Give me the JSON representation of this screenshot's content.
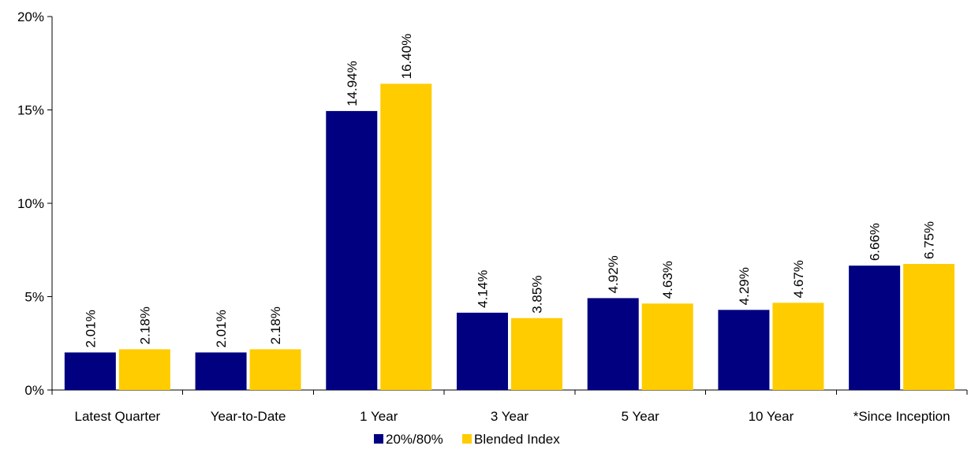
{
  "chart_data": {
    "type": "bar",
    "categories": [
      "Latest Quarter",
      "Year-to-Date",
      "1 Year",
      "3 Year",
      "5 Year",
      "10 Year",
      "*Since Inception"
    ],
    "series": [
      {
        "name": "20%/80%",
        "color": "#000080",
        "values": [
          2.01,
          2.01,
          14.94,
          4.14,
          4.92,
          4.29,
          6.66
        ],
        "labels": [
          "2.01%",
          "2.01%",
          "14.94%",
          "4.14%",
          "4.92%",
          "4.29%",
          "6.66%"
        ]
      },
      {
        "name": "Blended Index",
        "color": "#FFCC00",
        "values": [
          2.18,
          2.18,
          16.4,
          3.85,
          4.63,
          4.67,
          6.75
        ],
        "labels": [
          "2.18%",
          "2.18%",
          "16.40%",
          "3.85%",
          "4.63%",
          "4.67%",
          "6.75%"
        ]
      }
    ],
    "ylim": [
      0,
      20
    ],
    "yticks": [
      0,
      5,
      10,
      15,
      20
    ],
    "ytick_labels": [
      "0%",
      "5%",
      "10%",
      "15%",
      "20%"
    ],
    "grid": false,
    "legend_position": "bottom"
  }
}
